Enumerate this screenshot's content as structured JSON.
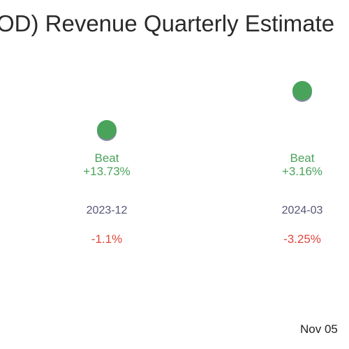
{
  "title": "(OD) Revenue Quarterly Estimate",
  "footer_date": "Nov 05",
  "colors": {
    "beat": "#4aa35a",
    "miss": "#e0463c",
    "period": "#555577",
    "marker": "#4aa35a",
    "marker_shadow": "#8888aa"
  },
  "chart_data": {
    "type": "scatter",
    "title": "(OD) Revenue Quarterly Estimate",
    "points": [
      {
        "period": "2023-12",
        "result": "Beat",
        "surprise": "+13.73%",
        "change": "-1.1%",
        "y_rel": 0.55
      },
      {
        "period": "2024-03",
        "result": "Beat",
        "surprise": "+3.16%",
        "change": "-3.25%",
        "y_rel": 0.75
      }
    ]
  }
}
